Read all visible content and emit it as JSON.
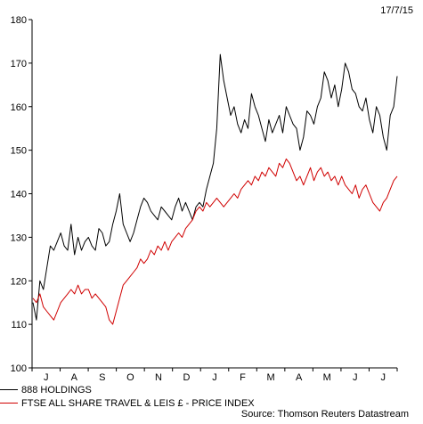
{
  "chart_data": {
    "type": "line",
    "date": "17/7/15",
    "source": "Source: Thomson Reuters Datastream",
    "ylim": [
      100,
      180
    ],
    "yticks": [
      100,
      110,
      120,
      130,
      140,
      150,
      160,
      170,
      180
    ],
    "xticks": [
      "J",
      "A",
      "S",
      "O",
      "N",
      "D",
      "J",
      "F",
      "M",
      "A",
      "M",
      "J",
      "J"
    ],
    "grid": false,
    "legend": "bottom-left",
    "series": [
      {
        "name": "888 HOLDINGS",
        "color": "#000000",
        "values": [
          115,
          111,
          120,
          118,
          123,
          128,
          127,
          129,
          131,
          128,
          127,
          133,
          126,
          130,
          127,
          129,
          130,
          128,
          127,
          132,
          131,
          128,
          129,
          133,
          136,
          140,
          133,
          131,
          129,
          131,
          134,
          137,
          139,
          138,
          136,
          135,
          134,
          137,
          136,
          135,
          134,
          137,
          139,
          136,
          138,
          136,
          134,
          137,
          138,
          137,
          141,
          144,
          147,
          155,
          172,
          166,
          162,
          158,
          160,
          156,
          154,
          157,
          155,
          163,
          160,
          158,
          155,
          152,
          157,
          154,
          156,
          158,
          154,
          160,
          158,
          156,
          155,
          150,
          153,
          159,
          158,
          156,
          160,
          162,
          168,
          166,
          162,
          165,
          160,
          164,
          170,
          168,
          164,
          163,
          160,
          159,
          162,
          157,
          154,
          160,
          158,
          153,
          150,
          158,
          160,
          167
        ]
      },
      {
        "name": "FTSE ALL SHARE TRAVEL & LEIS £ - PRICE INDEX",
        "color": "#d00000",
        "values": [
          116,
          115,
          117,
          114,
          113,
          112,
          111,
          113,
          115,
          116,
          117,
          118,
          117,
          119,
          117,
          118,
          118,
          116,
          117,
          116,
          115,
          114,
          111,
          110,
          113,
          116,
          119,
          120,
          121,
          122,
          123,
          125,
          124,
          125,
          127,
          126,
          128,
          127,
          129,
          127,
          129,
          130,
          131,
          130,
          132,
          133,
          134,
          136,
          137,
          136,
          138,
          137,
          138,
          139,
          138,
          137,
          138,
          139,
          140,
          139,
          141,
          142,
          143,
          142,
          144,
          143,
          145,
          144,
          146,
          145,
          144,
          147,
          146,
          148,
          147,
          145,
          143,
          144,
          142,
          144,
          146,
          143,
          145,
          146,
          144,
          145,
          143,
          144,
          142,
          144,
          142,
          141,
          140,
          142,
          139,
          141,
          142,
          140,
          138,
          137,
          136,
          138,
          139,
          141,
          143,
          144
        ]
      }
    ]
  }
}
